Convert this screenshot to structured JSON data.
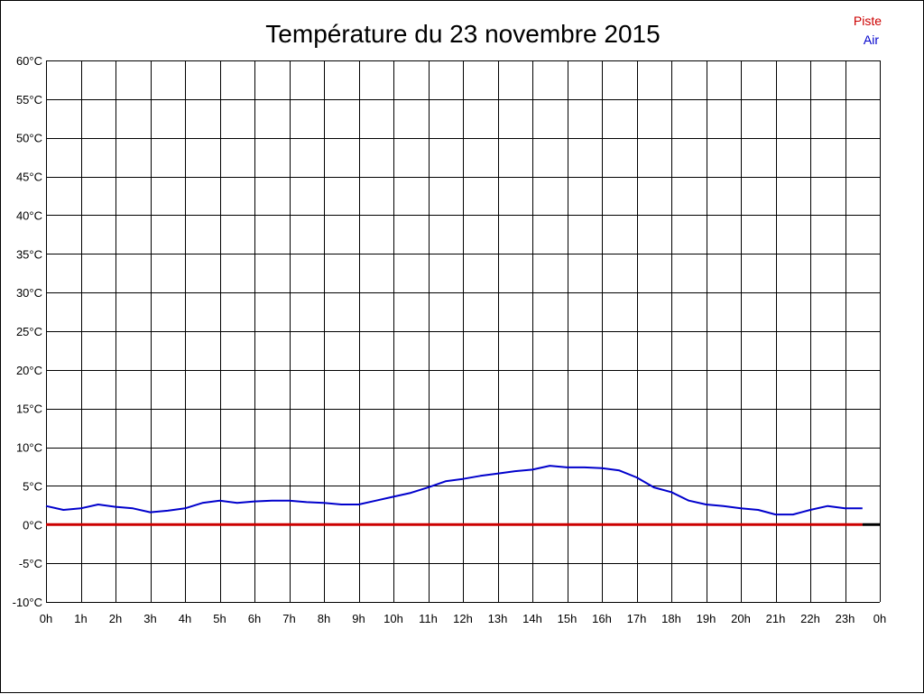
{
  "chart_data": {
    "type": "line",
    "title": "Température du 23 novembre 2015",
    "xlabel": "",
    "ylabel": "",
    "x_ticks": [
      "0h",
      "1h",
      "2h",
      "3h",
      "4h",
      "5h",
      "6h",
      "7h",
      "8h",
      "9h",
      "10h",
      "11h",
      "12h",
      "13h",
      "14h",
      "15h",
      "16h",
      "17h",
      "18h",
      "19h",
      "20h",
      "21h",
      "22h",
      "23h",
      "0h"
    ],
    "y_ticks": [
      "60°C",
      "55°C",
      "50°C",
      "45°C",
      "40°C",
      "35°C",
      "30°C",
      "25°C",
      "20°C",
      "15°C",
      "10°C",
      "5°C",
      "0°C",
      "-5°C",
      "-10°C"
    ],
    "xlim": [
      0,
      24
    ],
    "ylim": [
      -10,
      60
    ],
    "grid": true,
    "legend_position": "top-right",
    "series": [
      {
        "name": "Piste",
        "color": "#cc0000",
        "x": [
          0,
          23.5
        ],
        "y": [
          0,
          0
        ]
      },
      {
        "name": "Air",
        "color": "#0000cc",
        "x": [
          0,
          0.5,
          1,
          1.5,
          2,
          2.5,
          3,
          3.5,
          4,
          4.5,
          5,
          5.5,
          6,
          6.5,
          7,
          7.5,
          8,
          8.5,
          9,
          9.5,
          10,
          10.5,
          11,
          11.5,
          12,
          12.5,
          13,
          13.5,
          14,
          14.5,
          15,
          15.5,
          16,
          16.5,
          17,
          17.5,
          18,
          18.5,
          19,
          19.5,
          20,
          20.5,
          21,
          21.5,
          22,
          22.5,
          23,
          23.5
        ],
        "y": [
          2.4,
          1.9,
          2.1,
          2.6,
          2.3,
          2.1,
          1.6,
          1.8,
          2.1,
          2.8,
          3.1,
          2.8,
          3.0,
          3.1,
          3.1,
          2.9,
          2.8,
          2.6,
          2.6,
          3.1,
          3.6,
          4.1,
          4.8,
          5.6,
          5.9,
          6.3,
          6.6,
          6.9,
          7.1,
          7.6,
          7.4,
          7.4,
          7.3,
          7.0,
          6.1,
          4.8,
          4.2,
          3.1,
          2.6,
          2.4,
          2.1,
          1.9,
          1.3,
          1.3,
          1.9,
          2.4,
          2.1,
          2.1
        ]
      }
    ]
  },
  "colors": {
    "background": "#ffffff",
    "grid": "#000000",
    "axis_end": "#000000"
  }
}
